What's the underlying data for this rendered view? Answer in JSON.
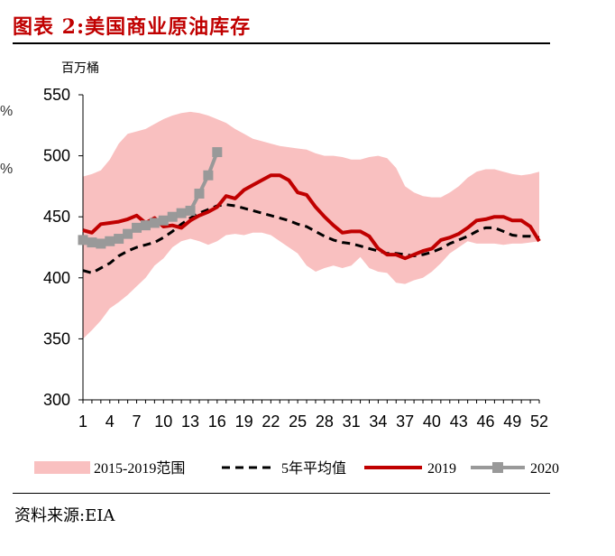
{
  "header": {
    "title": "图表 2:美国商业原油库存"
  },
  "footer": {
    "source": "资料来源:EIA"
  },
  "edge_glyphs": [
    "%",
    "%"
  ],
  "chart_data": {
    "type": "line",
    "unit": "百万桶",
    "ylim": [
      300,
      550
    ],
    "yticks": [
      300,
      350,
      400,
      450,
      500,
      550
    ],
    "xlim": [
      1,
      52
    ],
    "xticks": [
      1,
      4,
      7,
      10,
      13,
      16,
      19,
      22,
      25,
      28,
      31,
      34,
      37,
      40,
      43,
      46,
      49,
      52
    ],
    "weeks": [
      1,
      2,
      3,
      4,
      5,
      6,
      7,
      8,
      9,
      10,
      11,
      12,
      13,
      14,
      15,
      16,
      17,
      18,
      19,
      20,
      21,
      22,
      23,
      24,
      25,
      26,
      27,
      28,
      29,
      30,
      31,
      32,
      33,
      34,
      35,
      36,
      37,
      38,
      39,
      40,
      41,
      42,
      43,
      44,
      45,
      46,
      47,
      48,
      49,
      50,
      51,
      52
    ],
    "band": {
      "name": "2015-2019范围",
      "color": "#f9c0c0",
      "upper": [
        483,
        485,
        488,
        497,
        510,
        518,
        520,
        522,
        526,
        530,
        533,
        535,
        536,
        535,
        533,
        530,
        527,
        522,
        518,
        514,
        512,
        510,
        508,
        507,
        506,
        505,
        502,
        500,
        500,
        499,
        497,
        497,
        499,
        500,
        498,
        490,
        475,
        470,
        467,
        466,
        466,
        470,
        475,
        482,
        487,
        489,
        489,
        487,
        485,
        484,
        485,
        487
      ],
      "lower": [
        350,
        357,
        365,
        375,
        380,
        386,
        393,
        400,
        410,
        416,
        425,
        430,
        432,
        430,
        427,
        430,
        435,
        436,
        435,
        437,
        437,
        435,
        430,
        425,
        420,
        410,
        405,
        408,
        410,
        408,
        410,
        417,
        408,
        405,
        404,
        396,
        395,
        398,
        400,
        405,
        412,
        420,
        425,
        430,
        428,
        428,
        428,
        427,
        428,
        428,
        429,
        430
      ]
    },
    "series": [
      {
        "name": "5年平均值",
        "color": "#000000",
        "style": "dashed",
        "values": [
          406,
          404,
          408,
          412,
          418,
          422,
          425,
          427,
          429,
          433,
          438,
          444,
          449,
          453,
          456,
          459,
          460,
          459,
          457,
          455,
          453,
          451,
          449,
          447,
          444,
          442,
          438,
          434,
          431,
          429,
          428,
          426,
          424,
          422,
          420,
          420,
          419,
          418,
          419,
          421,
          424,
          428,
          431,
          434,
          438,
          441,
          441,
          438,
          435,
          434,
          434,
          433
        ]
      },
      {
        "name": "2019",
        "color": "#c00000",
        "style": "solid",
        "values": [
          439,
          437,
          444,
          445,
          446,
          448,
          451,
          445,
          449,
          442,
          443,
          441,
          447,
          451,
          454,
          458,
          467,
          465,
          472,
          476,
          480,
          484,
          484,
          480,
          470,
          468,
          458,
          450,
          443,
          437,
          438,
          438,
          434,
          424,
          419,
          419,
          416,
          419,
          422,
          424,
          431,
          433,
          436,
          441,
          447,
          448,
          450,
          450,
          447,
          447,
          442,
          430
        ]
      },
      {
        "name": "2020",
        "color": "#999999",
        "style": "marker",
        "values": [
          431,
          429,
          428,
          430,
          432,
          436,
          441,
          443,
          445,
          447,
          450,
          453,
          455,
          469,
          484,
          503
        ]
      }
    ],
    "legend": [
      "2015-2019范围",
      "5年平均值",
      "2019",
      "2020"
    ],
    "legend_position": "bottom",
    "grid": false
  }
}
